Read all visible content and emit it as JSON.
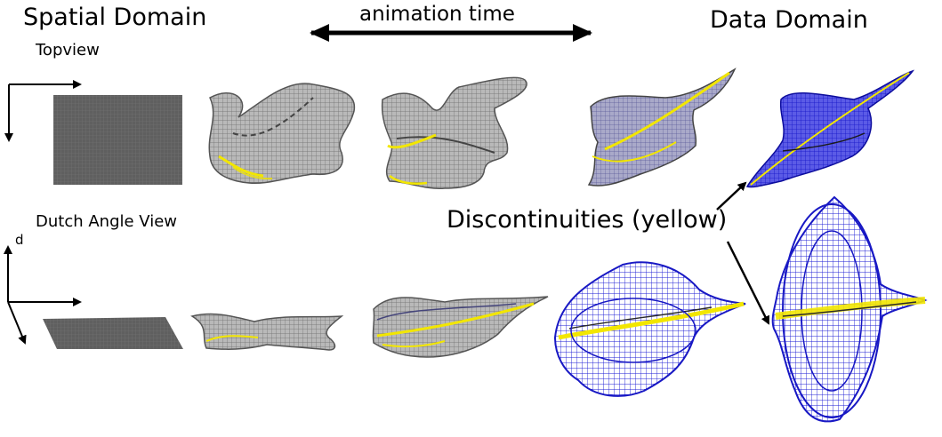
{
  "labels": {
    "spatial_domain": "Spatial Domain",
    "data_domain": "Data Domain",
    "animation_time": "animation time",
    "topview": "Topview",
    "dutch_angle_view": "Dutch Angle View",
    "discontinuities": "Discontinuities (yellow)",
    "axis_d": "d"
  },
  "colors": {
    "grid_gray": "#6b6b6b",
    "mesh_gray": "#7d7d7d",
    "mesh_blue": "#1a1ad0",
    "mesh_blue_light": "#3a3ae0",
    "discontinuity_yellow": "#f2e600",
    "arrow": "#000000"
  }
}
